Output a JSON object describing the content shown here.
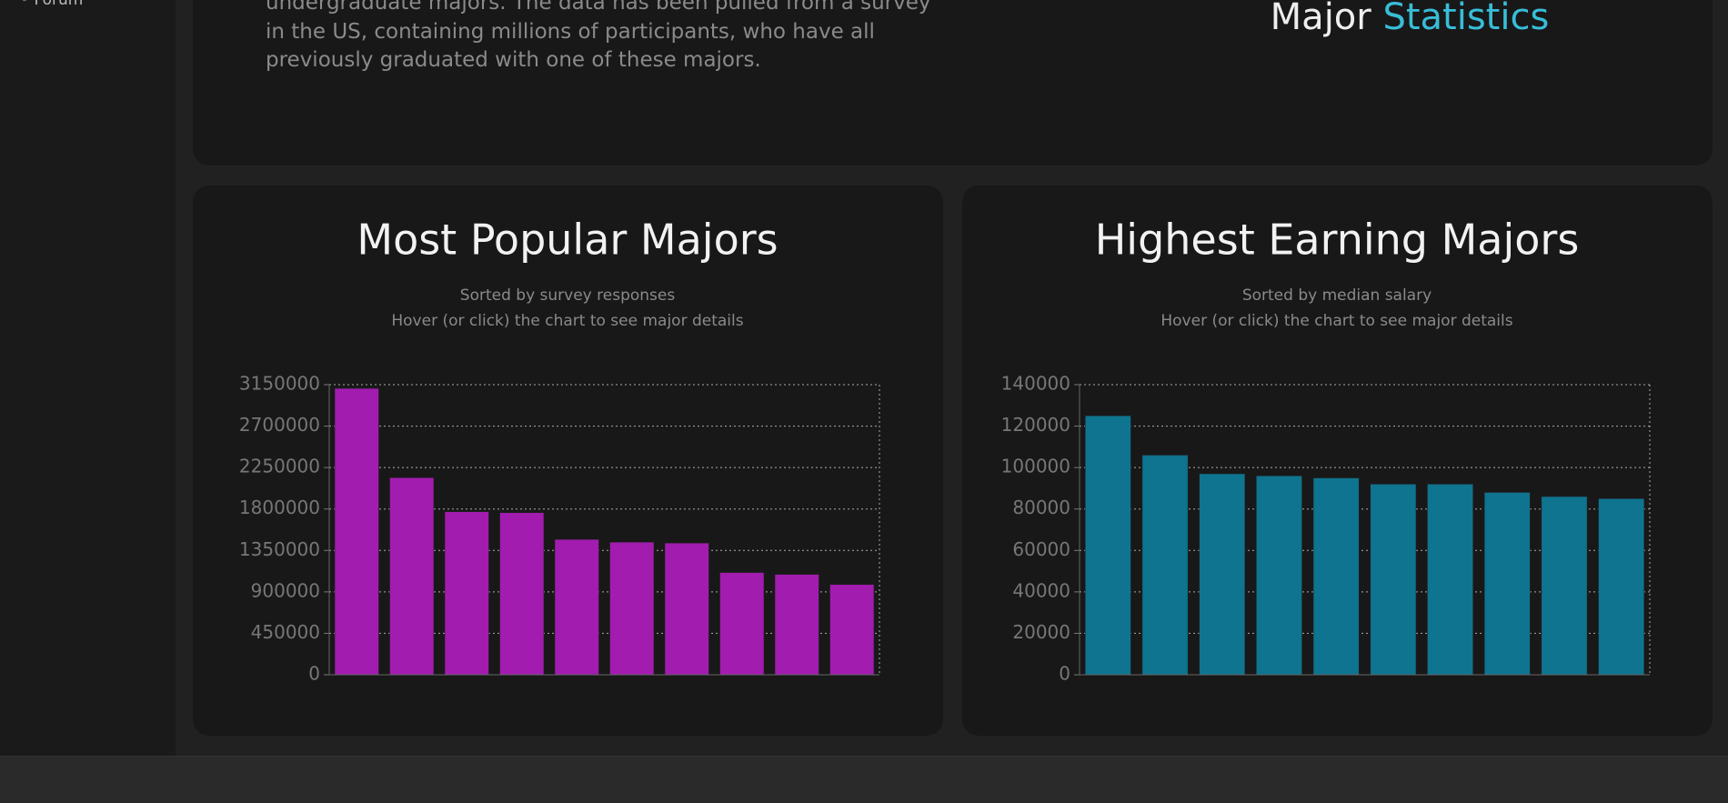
{
  "sidebar": {
    "items": [
      "Forum"
    ]
  },
  "intro": {
    "text": "undergraduate majors. The data has been pulled from a survey in the US, containing millions of participants, who have all previously graduated with one of these majors.",
    "heading_prefix": "Major",
    "heading_highlight": "Statistics"
  },
  "chart_data": [
    {
      "type": "bar",
      "title": "Most Popular Majors",
      "subtitle": "Sorted by survey responses",
      "note": "Hover (or click) the chart to see major details",
      "categories": [
        null,
        null,
        null,
        null,
        null,
        null,
        null,
        null,
        null,
        null
      ],
      "values": [
        3110000,
        2140000,
        1770000,
        1760000,
        1470000,
        1440000,
        1430000,
        1110000,
        1090000,
        980000
      ],
      "color": "#a21caf",
      "ylim": [
        0,
        3150000
      ],
      "yticks": [
        0,
        450000,
        900000,
        1350000,
        1800000,
        2250000,
        2700000,
        3150000
      ],
      "grid": true
    },
    {
      "type": "bar",
      "title": "Highest Earning Majors",
      "subtitle": "Sorted by median salary",
      "note": "Hover (or click) the chart to see major details",
      "categories": [
        null,
        null,
        null,
        null,
        null,
        null,
        null,
        null,
        null,
        null
      ],
      "values": [
        125000,
        106000,
        97000,
        96000,
        95000,
        92000,
        92000,
        88000,
        86000,
        85000
      ],
      "color": "#0e7490",
      "ylim": [
        0,
        140000
      ],
      "yticks": [
        0,
        20000,
        40000,
        60000,
        80000,
        100000,
        120000,
        140000
      ],
      "grid": true
    }
  ]
}
